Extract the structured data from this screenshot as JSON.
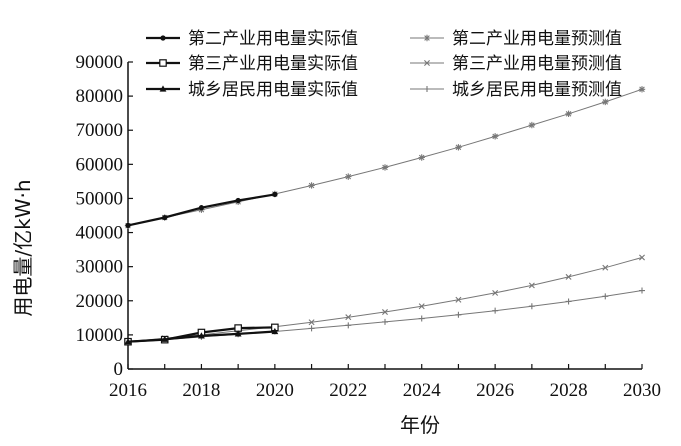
{
  "chart_data": {
    "type": "line",
    "title": "",
    "xlabel": "年份",
    "ylabel": "用电量/亿kW·h",
    "xlim": [
      2016,
      2030
    ],
    "ylim": [
      0,
      90000
    ],
    "x_ticks": [
      "2016",
      "2018",
      "2020",
      "2022",
      "2024",
      "2026",
      "2028",
      "2030"
    ],
    "y_ticks": [
      "0",
      "10000",
      "20000",
      "30000",
      "40000",
      "50000",
      "60000",
      "70000",
      "80000",
      "90000"
    ],
    "legend_position": "top-left",
    "grid": false,
    "series": [
      {
        "name": "第二产业用电量实际值",
        "marker": "filled-circle",
        "line": "thick",
        "color": "#111111",
        "x": [
          2016,
          2017,
          2018,
          2019,
          2020
        ],
        "values": [
          42100,
          44400,
          47300,
          49400,
          51200
        ]
      },
      {
        "name": "第三产业用电量实际值",
        "marker": "open-square",
        "line": "thick",
        "color": "#111111",
        "x": [
          2016,
          2017,
          2018,
          2019,
          2020
        ],
        "values": [
          8000,
          8600,
          10700,
          12000,
          12200
        ]
      },
      {
        "name": "城乡居民用电量实际值",
        "marker": "filled-triangle",
        "line": "thick",
        "color": "#111111",
        "x": [
          2016,
          2017,
          2018,
          2019,
          2020
        ],
        "values": [
          8000,
          8700,
          9700,
          10300,
          11000
        ]
      },
      {
        "name": "第二产业用电量预测值",
        "marker": "asterisk",
        "line": "thin",
        "color": "#777777",
        "x": [
          2016,
          2017,
          2018,
          2019,
          2020,
          2021,
          2022,
          2023,
          2024,
          2025,
          2026,
          2027,
          2028,
          2029,
          2030
        ],
        "values": [
          42000,
          44400,
          46700,
          49000,
          51300,
          53800,
          56400,
          59100,
          62000,
          65000,
          68200,
          71500,
          74800,
          78300,
          82000
        ]
      },
      {
        "name": "第三产业用电量预测值",
        "marker": "x",
        "line": "thin",
        "color": "#777777",
        "x": [
          2016,
          2017,
          2018,
          2019,
          2020,
          2021,
          2022,
          2023,
          2024,
          2025,
          2026,
          2027,
          2028,
          2029,
          2030
        ],
        "values": [
          8000,
          9000,
          10000,
          11200,
          12400,
          13700,
          15200,
          16700,
          18400,
          20300,
          22300,
          24500,
          27000,
          29700,
          32700
        ]
      },
      {
        "name": "城乡居民用电量预测值",
        "marker": "plus",
        "line": "thin",
        "color": "#777777",
        "x": [
          2016,
          2017,
          2018,
          2019,
          2020,
          2021,
          2022,
          2023,
          2024,
          2025,
          2026,
          2027,
          2028,
          2029,
          2030
        ],
        "values": [
          8000,
          8600,
          9400,
          10200,
          11000,
          11900,
          12800,
          13800,
          14800,
          15900,
          17100,
          18400,
          19800,
          21300,
          23000
        ]
      }
    ]
  }
}
